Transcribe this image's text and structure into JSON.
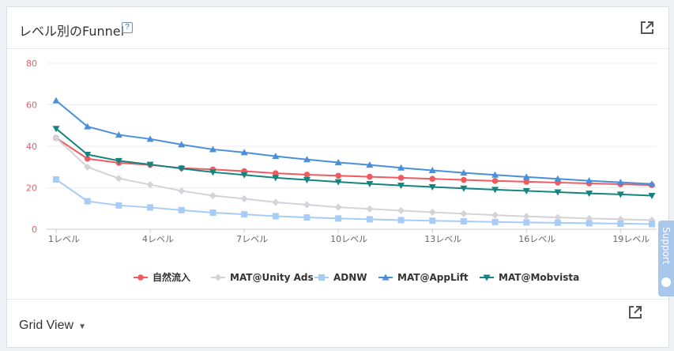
{
  "panel": {
    "title": "レベル別のFunnel",
    "help_label": "?"
  },
  "footer": {
    "grid_view_label": "Grid View"
  },
  "support": {
    "label": "Support"
  },
  "icons": {
    "external": "external-link-icon",
    "help": "question-icon",
    "caret": "caret-down-icon"
  },
  "chart_data": {
    "type": "line",
    "x": [
      "1レベル",
      "2レベル",
      "3レベル",
      "4レベル",
      "5レベル",
      "6レベル",
      "7レベル",
      "8レベル",
      "9レベル",
      "10レベル",
      "11レベル",
      "12レベル",
      "13レベル",
      "14レベル",
      "15レベル",
      "16レベル",
      "17レベル",
      "18レベル",
      "19レベル",
      "20レベル"
    ],
    "x_tick_labels": [
      "1レベル",
      "4レベル",
      "7レベル",
      "10レベル",
      "13レベル",
      "16レベル",
      "19レベル"
    ],
    "ylim": [
      0,
      80
    ],
    "y_ticks": [
      0,
      20,
      40,
      60,
      80
    ],
    "grid": true,
    "legend_position": "bottom",
    "series": [
      {
        "name": "自然流入",
        "color": "#f05b61",
        "marker": "circle",
        "values": [
          44,
          34,
          32,
          31,
          29.5,
          28.8,
          28,
          27,
          26.3,
          25.8,
          25.3,
          24.8,
          24.3,
          23.8,
          23.3,
          22.9,
          22.5,
          22.1,
          21.7,
          21.3
        ]
      },
      {
        "name": "MAT@Unity Ads",
        "color": "#d3d3d8",
        "marker": "diamond",
        "values": [
          44,
          30,
          24.5,
          21.5,
          18.5,
          16.2,
          14.7,
          13,
          11.8,
          10.6,
          9.8,
          9,
          8.2,
          7.5,
          6.8,
          6.2,
          5.7,
          5.2,
          4.8,
          4.4
        ]
      },
      {
        "name": "ADNW",
        "color": "#a7cdf6",
        "marker": "square",
        "values": [
          24,
          13.5,
          11.5,
          10.5,
          9.2,
          8,
          7.2,
          6.3,
          5.7,
          5.2,
          4.8,
          4.4,
          4.1,
          3.8,
          3.5,
          3.3,
          3.1,
          2.9,
          2.7,
          2.5
        ]
      },
      {
        "name": "MAT@AppLift",
        "color": "#4a8fdb",
        "marker": "triangle-up",
        "values": [
          62,
          49.5,
          45.5,
          43.5,
          40.8,
          38.5,
          37,
          35.2,
          33.6,
          32.2,
          31,
          29.6,
          28.4,
          27.2,
          26.2,
          25.2,
          24.3,
          23.4,
          22.6,
          21.8
        ]
      },
      {
        "name": "MAT@Mobvista",
        "color": "#15847f",
        "marker": "triangle-down",
        "values": [
          48.5,
          36,
          33,
          31.2,
          29.3,
          27.5,
          26.2,
          24.8,
          23.8,
          22.8,
          21.9,
          21.1,
          20.4,
          19.7,
          19.1,
          18.5,
          17.9,
          17.3,
          16.8,
          16.2
        ]
      }
    ]
  }
}
